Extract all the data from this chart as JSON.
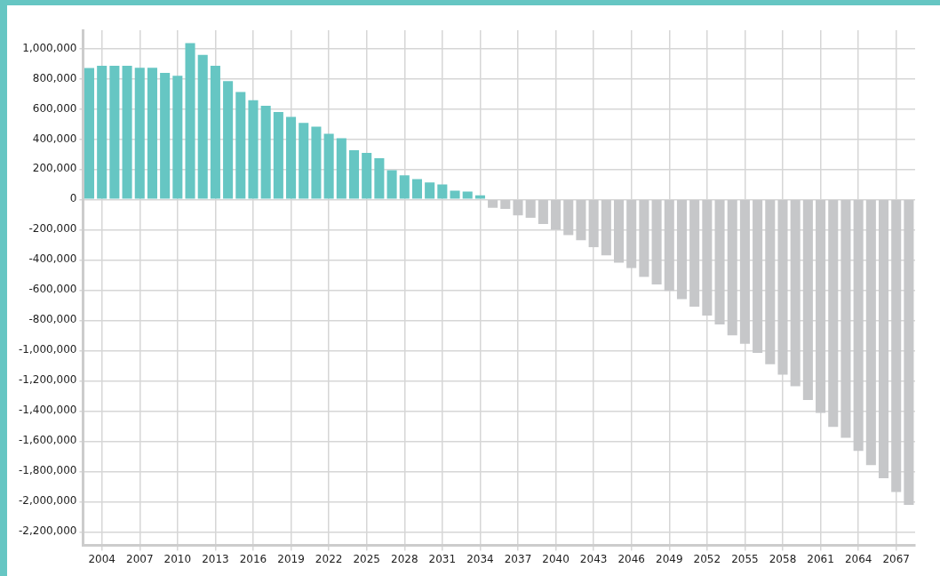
{
  "chart_data": {
    "type": "bar",
    "categories": [
      null,
      "2004",
      null,
      null,
      "2007",
      null,
      null,
      "2010",
      null,
      null,
      "2013",
      null,
      null,
      "2016",
      null,
      null,
      "2019",
      null,
      null,
      "2022",
      null,
      null,
      "2025",
      null,
      null,
      "2028",
      null,
      null,
      "2031",
      null,
      null,
      "2034",
      null,
      null,
      "2037",
      null,
      null,
      "2040",
      null,
      null,
      "2043",
      null,
      null,
      "2046",
      null,
      null,
      "2049",
      null,
      null,
      "2052",
      null,
      null,
      "2055",
      null,
      null,
      "2058",
      null,
      null,
      "2061",
      null,
      null,
      "2064",
      null,
      null,
      "2067",
      null
    ],
    "values": [
      870000,
      884000,
      884000,
      884000,
      872000,
      872000,
      837000,
      818000,
      1035000,
      957000,
      884000,
      783000,
      711000,
      657000,
      620000,
      578000,
      547000,
      506000,
      481000,
      434000,
      405000,
      326000,
      308000,
      273000,
      194000,
      159000,
      134000,
      112000,
      99000,
      58000,
      52000,
      27000,
      -55000,
      -62000,
      -105000,
      -122000,
      -162000,
      -200000,
      -236000,
      -270000,
      -316000,
      -370000,
      -418000,
      -454000,
      -513000,
      -563000,
      -606000,
      -660000,
      -709000,
      -769000,
      -828000,
      -899000,
      -955000,
      -1015000,
      -1091000,
      -1160000,
      -1237000,
      -1328000,
      -1413000,
      -1505000,
      -1578000,
      -1665000,
      -1759000,
      -1845000,
      -1937000,
      -2021000
    ],
    "colors": [
      "#66c6c3",
      "#66c6c3",
      "#66c6c3",
      "#66c6c3",
      "#66c6c3",
      "#66c6c3",
      "#66c6c3",
      "#66c6c3",
      "#66c6c3",
      "#66c6c3",
      "#66c6c3",
      "#66c6c3",
      "#66c6c3",
      "#66c6c3",
      "#66c6c3",
      "#66c6c3",
      "#66c6c3",
      "#66c6c3",
      "#66c6c3",
      "#66c6c3",
      "#66c6c3",
      "#66c6c3",
      "#66c6c3",
      "#66c6c3",
      "#66c6c3",
      "#66c6c3",
      "#66c6c3",
      "#66c6c3",
      "#66c6c3",
      "#66c6c3",
      "#66c6c3",
      "#66c6c3",
      "#c6c7c9",
      "#c6c7c9",
      "#c6c7c9",
      "#c6c7c9",
      "#c6c7c9",
      "#c6c7c9",
      "#c6c7c9",
      "#c6c7c9",
      "#c6c7c9",
      "#c6c7c9",
      "#c6c7c9",
      "#c6c7c9",
      "#c6c7c9",
      "#c6c7c9",
      "#c6c7c9",
      "#c6c7c9",
      "#c6c7c9",
      "#c6c7c9",
      "#c6c7c9",
      "#c6c7c9",
      "#c6c7c9",
      "#c6c7c9",
      "#c6c7c9",
      "#c6c7c9",
      "#c6c7c9",
      "#c6c7c9",
      "#c6c7c9",
      "#c6c7c9",
      "#c6c7c9",
      "#c6c7c9",
      "#c6c7c9",
      "#c6c7c9",
      "#c6c7c9",
      "#c6c7c9"
    ],
    "ylim": [
      -2290000,
      1120000
    ],
    "yticks": [
      {
        "value": -2200000,
        "label": "-2,200,000"
      },
      {
        "value": -2000000,
        "label": "-2,000,000"
      },
      {
        "value": -1800000,
        "label": "-1,800,000"
      },
      {
        "value": -1600000,
        "label": "-1,600,000"
      },
      {
        "value": -1400000,
        "label": "-1,400,000"
      },
      {
        "value": -1200000,
        "label": "-1,200,000"
      },
      {
        "value": -1000000,
        "label": "-1,000,000"
      },
      {
        "value": -800000,
        "label": "-800,000"
      },
      {
        "value": -600000,
        "label": "-600,000"
      },
      {
        "value": -400000,
        "label": "-400,000"
      },
      {
        "value": -200000,
        "label": "-200,000"
      },
      0,
      {
        "value": 200000,
        "label": "200,000"
      },
      {
        "value": 400000,
        "label": "400,000"
      },
      {
        "value": 600000,
        "label": "600,000"
      },
      {
        "value": 800000,
        "label": "800,000"
      },
      {
        "value": 1000000,
        "label": "1,000,000"
      }
    ],
    "grid": true
  }
}
